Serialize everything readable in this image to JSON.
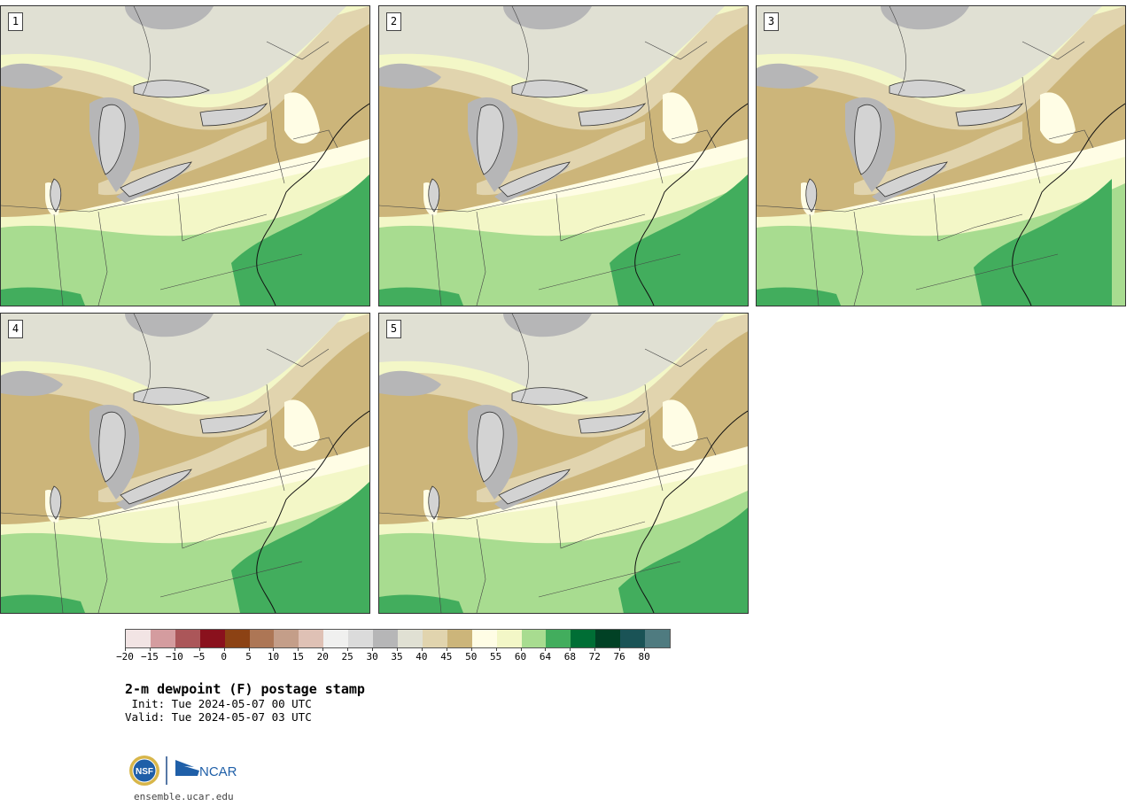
{
  "panels": [
    {
      "label": "1"
    },
    {
      "label": "2"
    },
    {
      "label": "3"
    },
    {
      "label": "4"
    },
    {
      "label": "5"
    }
  ],
  "colorbar": {
    "colors": [
      "#f2e4e4",
      "#d49c9f",
      "#ab5659",
      "#8a111d",
      "#8c4214",
      "#ad7655",
      "#c49e89",
      "#dfc1b5",
      "#f0f0ef",
      "#dbdbdb",
      "#b6b6b7",
      "#e0e0d3",
      "#e1d4ae",
      "#ccb57a",
      "#fffde5",
      "#f3f7c7",
      "#a8dc90",
      "#42ad5d",
      "#006e35",
      "#014125",
      "#1a5356",
      "#4f7b80"
    ],
    "tick_labels": [
      "−20",
      "−15",
      "−10",
      "−5",
      "0",
      "5",
      "10",
      "15",
      "20",
      "25",
      "30",
      "35",
      "40",
      "45",
      "50",
      "55",
      "60",
      "64",
      "68",
      "72",
      "76",
      "80"
    ]
  },
  "title": "2-m dewpoint (F) postage stamp",
  "init_line": " Init: Tue 2024-05-07 00 UTC",
  "valid_line": "Valid: Tue 2024-05-07 03 UTC",
  "logo": {
    "nsf_text": "NSF",
    "ncar_text": "NCAR"
  },
  "website": "ensemble.ucar.edu"
}
